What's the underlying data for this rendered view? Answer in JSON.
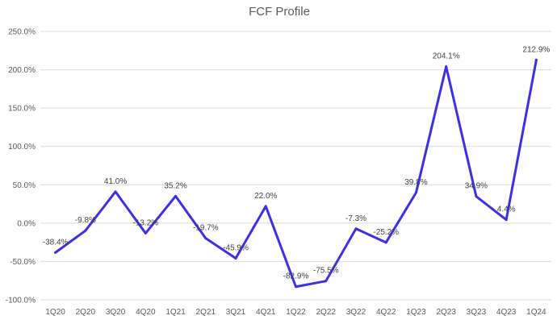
{
  "colors": {
    "series": "#3b2fe8",
    "grid": "#d9d9d9",
    "text": "#595959"
  },
  "chart_data": {
    "type": "line",
    "title": "FCF Profile",
    "xlabel": "",
    "ylabel": "",
    "categories": [
      "1Q20",
      "2Q20",
      "3Q20",
      "4Q20",
      "1Q21",
      "2Q21",
      "3Q21",
      "4Q21",
      "1Q22",
      "2Q22",
      "3Q22",
      "4Q22",
      "1Q23",
      "2Q23",
      "3Q23",
      "4Q23",
      "1Q24"
    ],
    "series": [
      {
        "values": [
          -38.4,
          -9.8,
          41.0,
          -13.2,
          35.2,
          -19.7,
          -45.9,
          22.0,
          -82.9,
          -75.5,
          -7.3,
          -25.2,
          39.8,
          204.1,
          34.9,
          4.4,
          212.9
        ],
        "data_labels": [
          "-38.4%",
          "-9.8%",
          "41.0%",
          "-13.2%",
          "35.2%",
          "-19.7%",
          "-45.9%",
          "22.0%",
          "-82.9%",
          "-75.5%",
          "-7.3%",
          "-25.2%",
          "39.8%",
          "204.1%",
          "34.9%",
          "4.4%",
          "212.9%"
        ]
      }
    ],
    "ylim": [
      -100,
      250
    ],
    "yticks": [
      -100,
      -50,
      0,
      50,
      100,
      150,
      200,
      250
    ],
    "ytick_labels": [
      "-100.0%",
      "-50.0%",
      "0.0%",
      "50.0%",
      "100.0%",
      "150.0%",
      "200.0%",
      "250.0%"
    ],
    "grid": true,
    "legend": "none"
  }
}
